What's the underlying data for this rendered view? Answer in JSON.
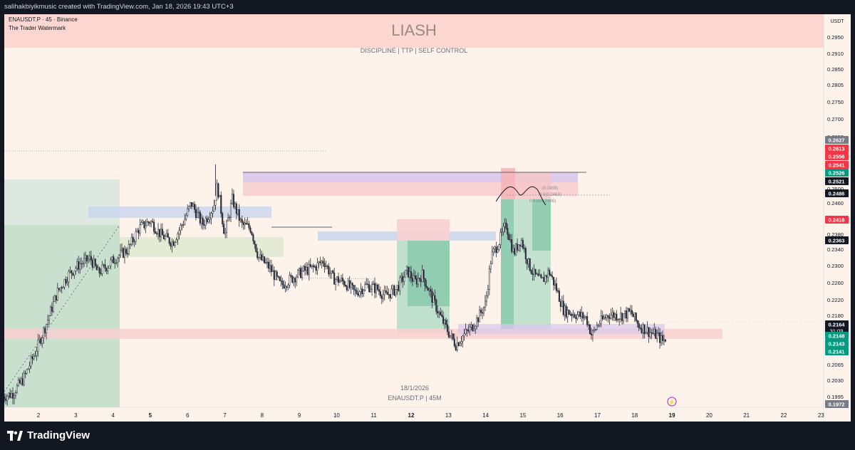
{
  "header": {
    "credit": "salihakbiyikmusic created with TradingView.com, Jan 18, 2026 19:43 UTC+3"
  },
  "legend": {
    "symbol_line": "ENAUSDT.P · 45 · Binance",
    "watermark_line": "The Trader Watermark"
  },
  "banner": {
    "title": "LIASH",
    "subtitle": "DISCIPLINE | TTP | SELF CONTROL",
    "color": "#fcd7d1"
  },
  "footer_watermark": {
    "date": "18/1/2026",
    "symbol": "ENAUSDT.P | 45M"
  },
  "price_scale": {
    "currency": "USDT",
    "ticks": [
      "0.2950",
      "0.2910",
      "0.2850",
      "0.2805",
      "0.2750",
      "0.2700",
      "0.2650",
      "0.2580",
      "0.2500",
      "0.2460",
      "0.2420",
      "0.2380",
      "0.2340",
      "0.2300",
      "0.2260",
      "0.2220",
      "0.2180",
      "0.2140",
      "0.2105",
      "0.2065",
      "0.2030",
      "0.1995"
    ],
    "badges": [
      {
        "label": "0.2627",
        "value": 0.2627,
        "color": "#787b86"
      },
      {
        "label": "0.2613",
        "value": 0.2613,
        "color": "#f23645"
      },
      {
        "label": "0.2556",
        "value": 0.2556,
        "color": "#f23645"
      },
      {
        "label": "0.2541",
        "value": 0.2541,
        "color": "#f23645"
      },
      {
        "label": "0.2526",
        "value": 0.2526,
        "color": "#089981"
      },
      {
        "label": "0.2521",
        "value": 0.2521,
        "color": "#131722"
      },
      {
        "label": "0.2486",
        "value": 0.2486,
        "color": "#131722"
      },
      {
        "label": "0.2418",
        "value": 0.2418,
        "color": "#f23645"
      },
      {
        "label": "0.2363",
        "value": 0.2363,
        "color": "#131722"
      },
      {
        "label": "0.2164",
        "value": 0.2164,
        "color": "#131722",
        "sub": "31:09"
      },
      {
        "label": "0.2148",
        "value": 0.2148,
        "color": "#089981"
      },
      {
        "label": "0.2143",
        "value": 0.2143,
        "color": "#089981"
      },
      {
        "label": "0.2141",
        "value": 0.2141,
        "color": "#089981"
      },
      {
        "label": "0.1972",
        "value": 0.1972,
        "color": "#787b86"
      }
    ]
  },
  "time_axis": {
    "labels": [
      {
        "label": "2",
        "day": 2,
        "bold": false
      },
      {
        "label": "3",
        "day": 3,
        "bold": false
      },
      {
        "label": "4",
        "day": 4,
        "bold": false
      },
      {
        "label": "5",
        "day": 5,
        "bold": true
      },
      {
        "label": "6",
        "day": 6,
        "bold": false
      },
      {
        "label": "7",
        "day": 7,
        "bold": false
      },
      {
        "label": "8",
        "day": 8,
        "bold": false
      },
      {
        "label": "9",
        "day": 9,
        "bold": false
      },
      {
        "label": "10",
        "day": 10,
        "bold": false
      },
      {
        "label": "11",
        "day": 11,
        "bold": false
      },
      {
        "label": "12",
        "day": 12,
        "bold": true
      },
      {
        "label": "13",
        "day": 13,
        "bold": false
      },
      {
        "label": "14",
        "day": 14,
        "bold": false
      },
      {
        "label": "15",
        "day": 15,
        "bold": false
      },
      {
        "label": "16",
        "day": 16,
        "bold": false
      },
      {
        "label": "17",
        "day": 17,
        "bold": false
      },
      {
        "label": "18",
        "day": 18,
        "bold": false
      },
      {
        "label": "19",
        "day": 19,
        "bold": true
      },
      {
        "label": "20",
        "day": 20,
        "bold": false
      },
      {
        "label": "21",
        "day": 21,
        "bold": false
      },
      {
        "label": "22",
        "day": 22,
        "bold": false
      },
      {
        "label": "23",
        "day": 23,
        "bold": false
      }
    ]
  },
  "fib_labels": [
    "(0.2499)",
    "0.5(0.2483)",
    "0.618(0.2466)"
  ],
  "colors": {
    "background": "#fdf3ea",
    "up": "#089981",
    "down": "#f23645",
    "candle": "#2a2e39"
  },
  "chart_data": {
    "type": "candlestick",
    "symbol": "ENAUSDT.P",
    "interval": "45",
    "exchange": "Binance",
    "x_unit": "day of month (Jan 2026)",
    "x_range": [
      1.0,
      23.0
    ],
    "y_range": [
      0.1972,
      0.296
    ],
    "last_price": 0.2164,
    "high": 0.2648,
    "low": 0.1985,
    "close_path": [
      [
        1.05,
        0.2
      ],
      [
        1.3,
        0.2008
      ],
      [
        1.6,
        0.205
      ],
      [
        1.9,
        0.212
      ],
      [
        2.2,
        0.22
      ],
      [
        2.5,
        0.229
      ],
      [
        2.8,
        0.234
      ],
      [
        3.1,
        0.237
      ],
      [
        3.4,
        0.2385
      ],
      [
        3.6,
        0.2345
      ],
      [
        3.9,
        0.237
      ],
      [
        4.1,
        0.239
      ],
      [
        4.4,
        0.241
      ],
      [
        4.7,
        0.247
      ],
      [
        5.0,
        0.249
      ],
      [
        5.3,
        0.245
      ],
      [
        5.6,
        0.243
      ],
      [
        5.9,
        0.249
      ],
      [
        6.1,
        0.254
      ],
      [
        6.4,
        0.248
      ],
      [
        6.7,
        0.253
      ],
      [
        6.8,
        0.259
      ],
      [
        7.0,
        0.245
      ],
      [
        7.2,
        0.255
      ],
      [
        7.45,
        0.248
      ],
      [
        7.7,
        0.247
      ],
      [
        7.9,
        0.239
      ],
      [
        8.2,
        0.236
      ],
      [
        8.5,
        0.231
      ],
      [
        8.8,
        0.233
      ],
      [
        9.1,
        0.235
      ],
      [
        9.4,
        0.236
      ],
      [
        9.65,
        0.238
      ],
      [
        9.9,
        0.233
      ],
      [
        10.2,
        0.232
      ],
      [
        10.5,
        0.229
      ],
      [
        10.8,
        0.231
      ],
      [
        11.1,
        0.23
      ],
      [
        11.3,
        0.228
      ],
      [
        11.6,
        0.23
      ],
      [
        11.9,
        0.235
      ],
      [
        12.1,
        0.232
      ],
      [
        12.3,
        0.234
      ],
      [
        12.5,
        0.229
      ],
      [
        12.8,
        0.222
      ],
      [
        13.0,
        0.218
      ],
      [
        13.2,
        0.2145
      ],
      [
        13.4,
        0.217
      ],
      [
        13.6,
        0.219
      ],
      [
        13.8,
        0.222
      ],
      [
        14.0,
        0.226
      ],
      [
        14.15,
        0.239
      ],
      [
        14.35,
        0.243
      ],
      [
        14.55,
        0.248
      ],
      [
        14.75,
        0.24
      ],
      [
        14.95,
        0.244
      ],
      [
        15.15,
        0.237
      ],
      [
        15.3,
        0.234
      ],
      [
        15.5,
        0.232
      ],
      [
        15.7,
        0.235
      ],
      [
        15.9,
        0.23
      ],
      [
        16.1,
        0.224
      ],
      [
        16.4,
        0.223
      ],
      [
        16.7,
        0.222
      ],
      [
        16.85,
        0.217
      ],
      [
        17.0,
        0.22
      ],
      [
        17.3,
        0.223
      ],
      [
        17.6,
        0.2225
      ],
      [
        17.9,
        0.2235
      ],
      [
        18.1,
        0.22
      ],
      [
        18.4,
        0.218
      ],
      [
        18.6,
        0.217
      ],
      [
        18.75,
        0.2155
      ],
      [
        18.85,
        0.2164
      ]
    ],
    "reference_lines": [
      0.2627,
      0.2613,
      0.2556,
      0.2541,
      0.2526,
      0.2521,
      0.2486,
      0.2418,
      0.2363,
      0.2164,
      0.2148,
      0.2143,
      0.2141,
      0.1972
    ]
  }
}
